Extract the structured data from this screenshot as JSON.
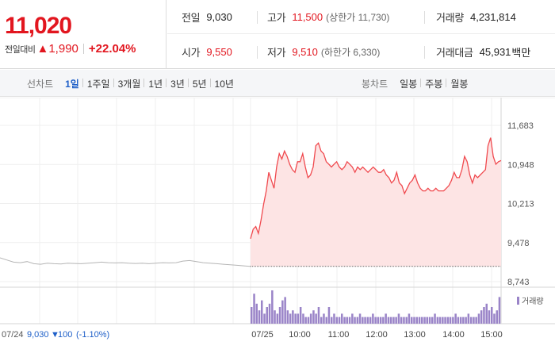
{
  "quote": {
    "price": "11,020",
    "change_label": "전일대비",
    "change_arrow": "▲",
    "change_value": "1,990",
    "change_pct": "+22.04%"
  },
  "stats": {
    "prev_close": {
      "label": "전일",
      "value": "9,030"
    },
    "high": {
      "label": "고가",
      "value": "11,500",
      "sub": "(상한가 11,730)"
    },
    "volume": {
      "label": "거래량",
      "value": "4,231,814"
    },
    "open": {
      "label": "시가",
      "value": "9,550"
    },
    "low": {
      "label": "저가",
      "value": "9,510",
      "sub": "(하한가 6,330)"
    },
    "trade_value": {
      "label": "거래대금",
      "value": "45,931",
      "unit": "백만"
    }
  },
  "tabs": {
    "line_label": "선차트",
    "line_items": [
      "1일",
      "1주일",
      "3개월",
      "1년",
      "3년",
      "5년",
      "10년"
    ],
    "line_active": "1일",
    "candle_label": "봉차트",
    "candle_items": [
      "일봉",
      "주봉",
      "월봉"
    ]
  },
  "colors": {
    "up": "#e2161f",
    "down": "#1e5fc8",
    "area_fill": "#fde4e4",
    "line": "#f04a4f",
    "prev_line": "#b5b5b5",
    "volume_bar": "#9a84c8"
  },
  "chart_data": {
    "type": "line",
    "ylim": [
      8743,
      11683
    ],
    "yticks": [
      "11,683",
      "10,948",
      "10,213",
      "9,478",
      "8,743"
    ],
    "x_ticks": [
      "07/25",
      "10:00",
      "11:00",
      "12:00",
      "13:00",
      "14:00",
      "15:00"
    ],
    "baseline": 9030,
    "prev_day": {
      "label": "07/24",
      "close": "9,030",
      "arrow": "▼",
      "change": "100",
      "change_pct": "(-1.10%)",
      "y": [
        9190,
        9150,
        9110,
        9100,
        9120,
        9080,
        9070,
        9090,
        9080,
        9075,
        9090,
        9085,
        9080,
        9090,
        9100,
        9110,
        9100,
        9095,
        9100,
        9090,
        9085,
        9090,
        9080,
        9090,
        9100,
        9095,
        9100,
        9130,
        9140,
        9120,
        9100,
        9090,
        9080,
        9070,
        9060,
        9050,
        9040,
        9030
      ]
    },
    "series": [
      {
        "values": [
          9550,
          9730,
          9780,
          9650,
          9900,
          10200,
          10450,
          10800,
          10650,
          10500,
          10900,
          11150,
          11050,
          11200,
          11100,
          10950,
          10850,
          10800,
          11000,
          11000,
          11150,
          10900,
          10700,
          10750,
          10900,
          11300,
          11350,
          11200,
          11150,
          11000,
          10950,
          10900,
          10950,
          11000,
          10900,
          10850,
          10900,
          11000,
          10950,
          10900,
          10800,
          10900,
          10850,
          10900,
          10850,
          10800,
          10850,
          10900,
          10850,
          10800,
          10800,
          10850,
          10750,
          10700,
          10600,
          10650,
          10800,
          10600,
          10550,
          10400,
          10500,
          10600,
          10650,
          10750,
          10600,
          10500,
          10450,
          10450,
          10500,
          10450,
          10450,
          10500,
          10450,
          10450,
          10450,
          10500,
          10550,
          10650,
          10800,
          10700,
          10700,
          10850,
          11100,
          11000,
          10750,
          10600,
          10750,
          10700,
          10750,
          10800,
          10850,
          11300,
          11450,
          11100,
          10950,
          11000,
          11020
        ]
      }
    ],
    "volume_label": "거래량",
    "volume": [
      0.5,
      0.9,
      0.6,
      0.4,
      0.7,
      0.3,
      0.5,
      0.6,
      1.0,
      0.4,
      0.3,
      0.5,
      0.7,
      0.8,
      0.4,
      0.3,
      0.4,
      0.3,
      0.3,
      0.5,
      0.3,
      0.2,
      0.2,
      0.3,
      0.4,
      0.3,
      0.5,
      0.2,
      0.3,
      0.2,
      0.5,
      0.2,
      0.3,
      0.2,
      0.2,
      0.3,
      0.2,
      0.2,
      0.2,
      0.3,
      0.2,
      0.2,
      0.3,
      0.2,
      0.2,
      0.2,
      0.2,
      0.3,
      0.2,
      0.2,
      0.2,
      0.2,
      0.3,
      0.2,
      0.2,
      0.2,
      0.2,
      0.3,
      0.2,
      0.2,
      0.2,
      0.3,
      0.2,
      0.2,
      0.2,
      0.2,
      0.2,
      0.2,
      0.2,
      0.2,
      0.2,
      0.3,
      0.2,
      0.2,
      0.2,
      0.2,
      0.2,
      0.2,
      0.2,
      0.3,
      0.2,
      0.2,
      0.2,
      0.2,
      0.3,
      0.2,
      0.2,
      0.2,
      0.3,
      0.4,
      0.5,
      0.6,
      0.4,
      0.5,
      0.3,
      0.4,
      0.8
    ]
  }
}
